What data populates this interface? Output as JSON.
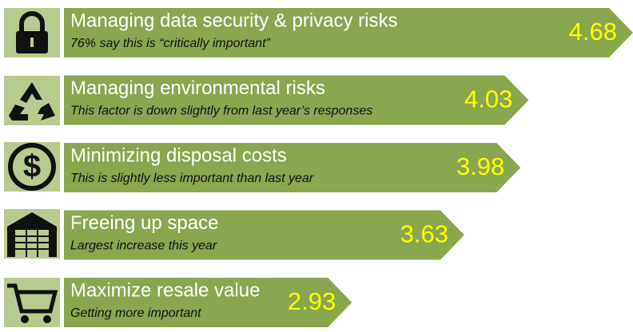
{
  "chart_data": {
    "type": "bar",
    "orientation": "horizontal",
    "categories": [
      "Managing data security & privacy risks",
      "Managing environmental risks",
      "Minimizing disposal costs",
      "Freeing up space",
      "Maximize resale value"
    ],
    "notes": [
      "76% say this is “critically important”",
      "This factor is down slightly from last year’s responses",
      "This is slightly less important than last year",
      "Largest increase this year",
      "Getting more important"
    ],
    "values": [
      4.68,
      4.03,
      3.98,
      3.63,
      2.93
    ],
    "color": "#8aa64f",
    "value_color": "#ffff00"
  }
}
